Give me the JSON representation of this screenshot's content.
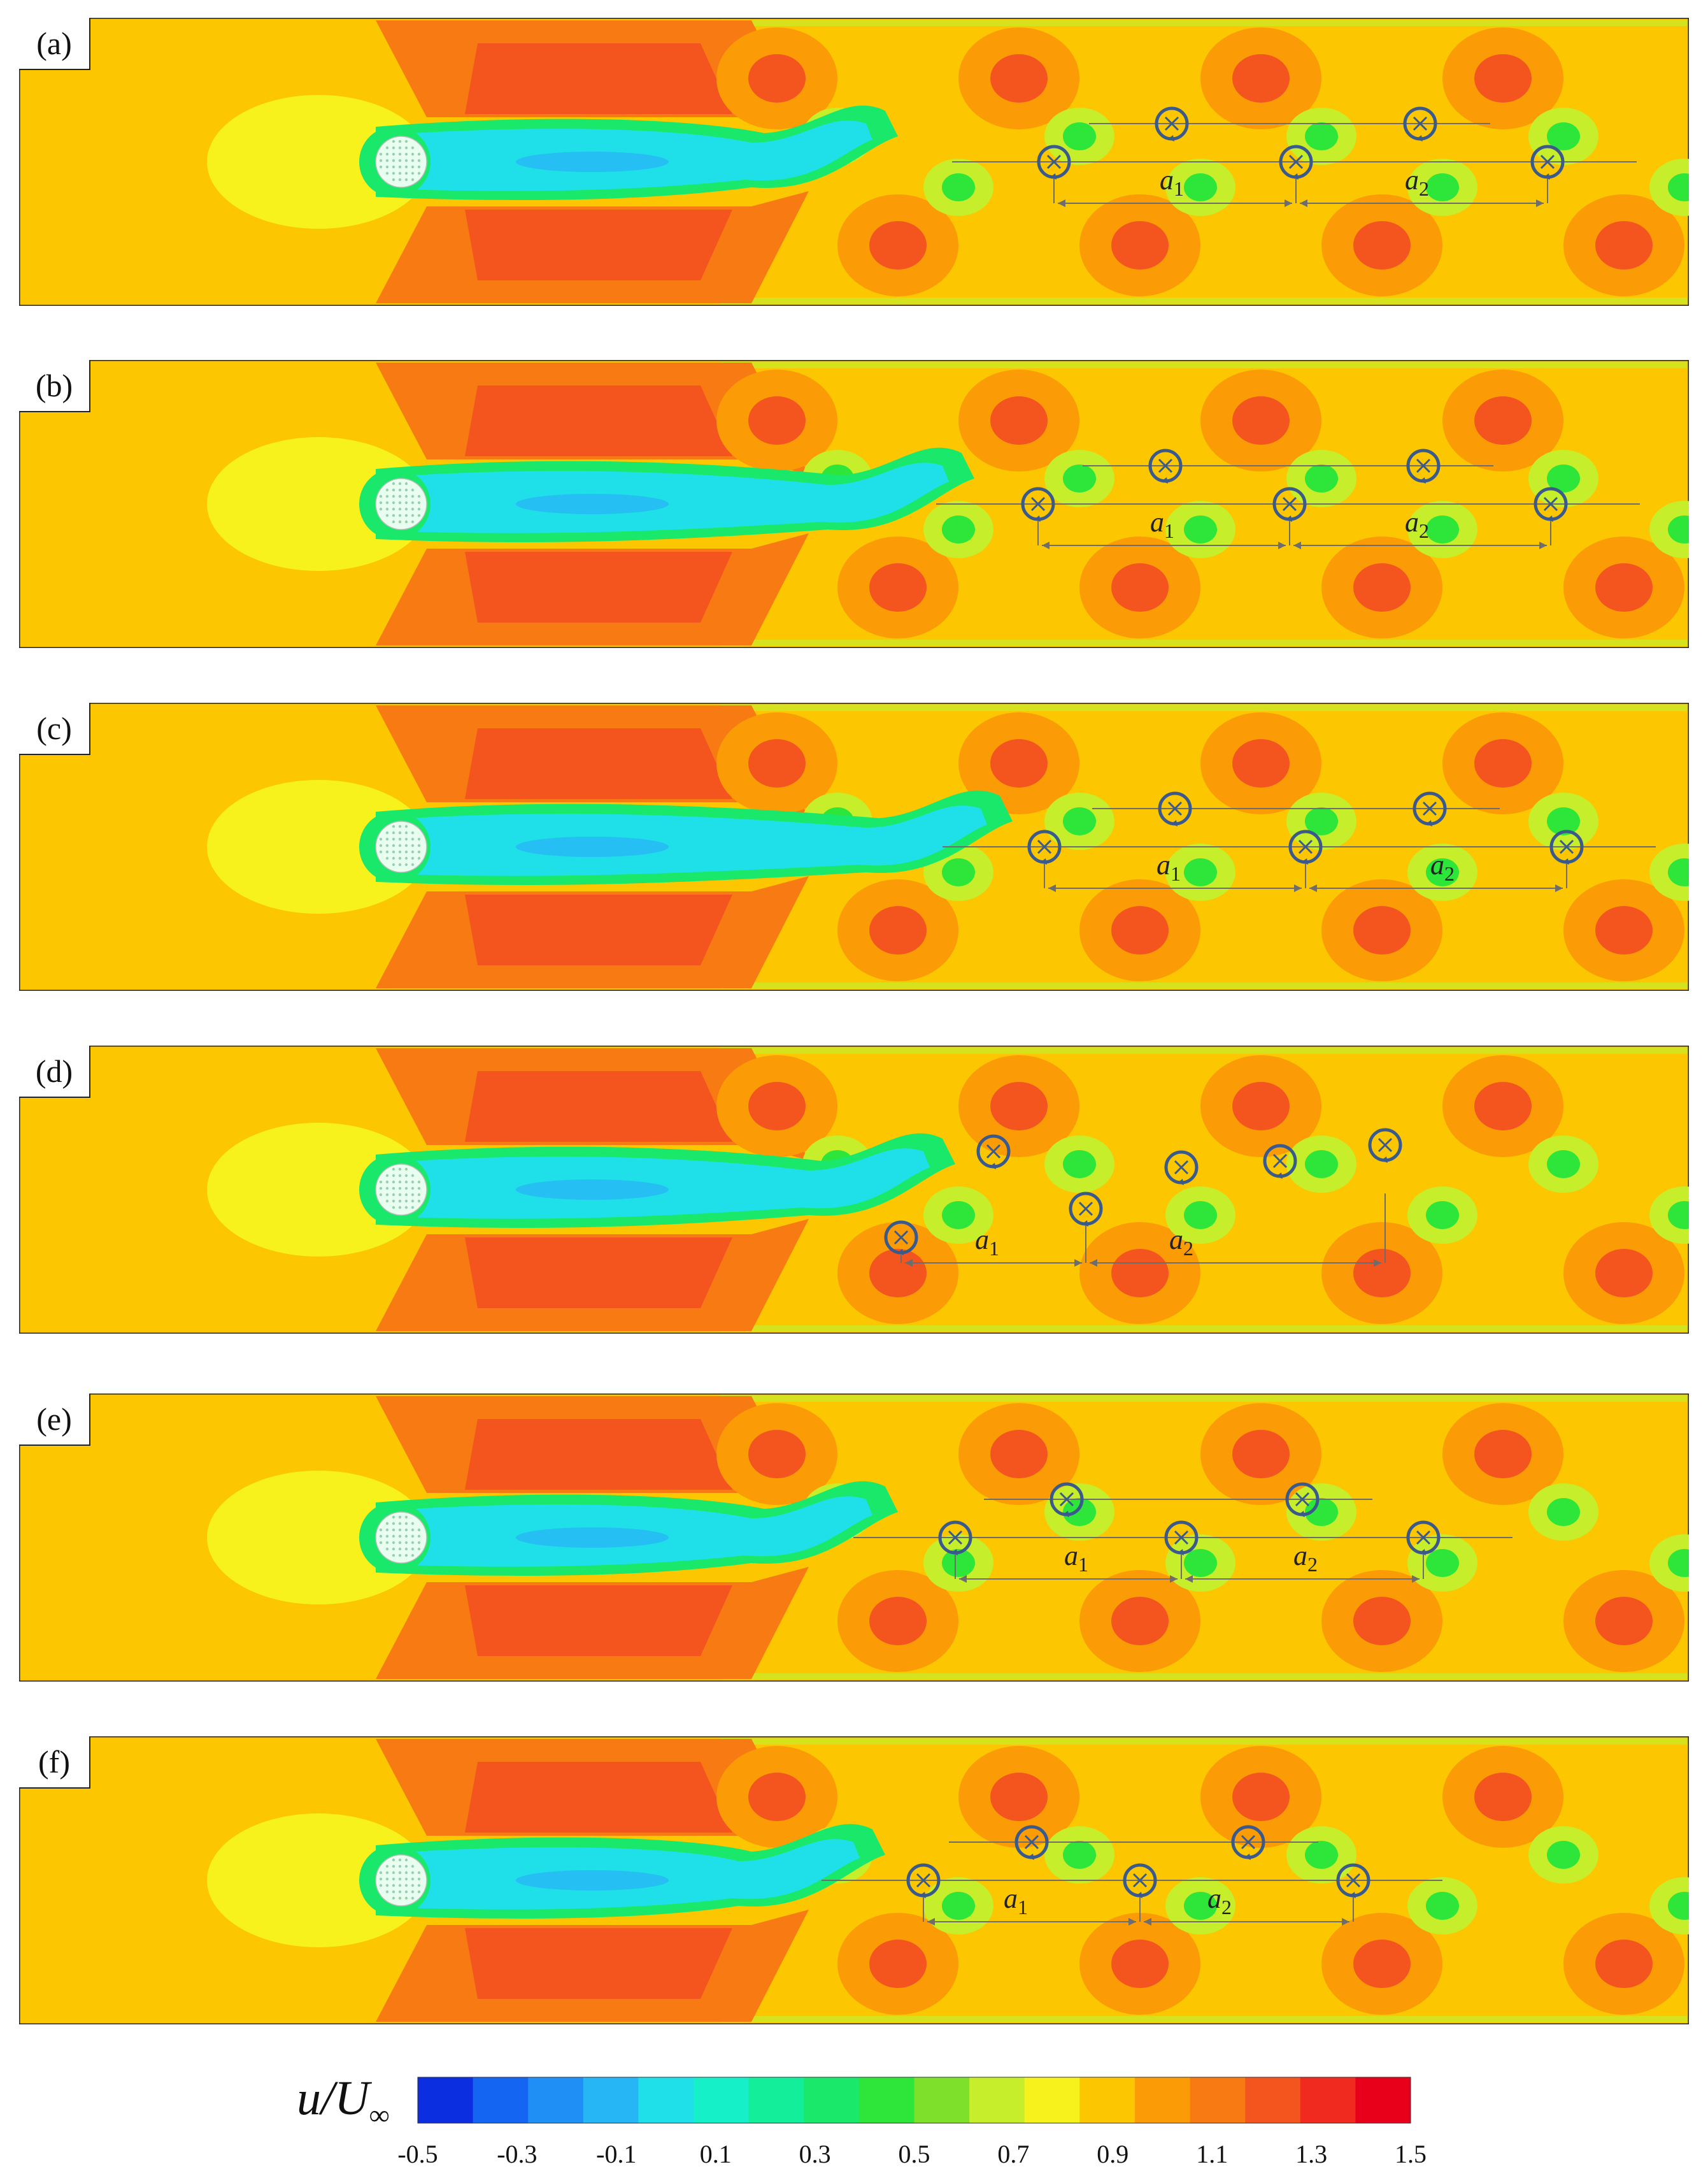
{
  "panels": [
    {
      "label": "(a)",
      "a1": "a",
      "a2": "a",
      "sub1": "1",
      "sub2": "2"
    },
    {
      "label": "(b)",
      "a1": "a",
      "a2": "a",
      "sub1": "1",
      "sub2": "2"
    },
    {
      "label": "(c)",
      "a1": "a",
      "a2": "a",
      "sub1": "1",
      "sub2": "2"
    },
    {
      "label": "(d)",
      "a1": "a",
      "a2": "a",
      "sub1": "1",
      "sub2": "2"
    },
    {
      "label": "(e)",
      "a1": "a",
      "a2": "a",
      "sub1": "1",
      "sub2": "2"
    },
    {
      "label": "(f)",
      "a1": "a",
      "a2": "a",
      "sub1": "1",
      "sub2": "2"
    }
  ],
  "colorbar": {
    "title_main": "u/U",
    "title_sub": "∞",
    "ticks": [
      "-0.5",
      "-0.3",
      "-0.1",
      "0.1",
      "0.3",
      "0.5",
      "0.7",
      "0.9",
      "1.1",
      "1.3",
      "1.5"
    ],
    "colors": [
      "#0a2ee0",
      "#1466f2",
      "#1f8ff6",
      "#27b6f5",
      "#1fe0e8",
      "#16f0c8",
      "#12ee9a",
      "#1ae86a",
      "#2ee53a",
      "#7ee02b",
      "#c6ee2a",
      "#f7f21c",
      "#fcc600",
      "#fb9c07",
      "#f77a12",
      "#f4551e",
      "#f02a1e",
      "#e8001a"
    ]
  },
  "colors": {
    "background_flow": "#fcc600",
    "freestream_bubble": "#f7f21c",
    "accelerated": "#f4551e",
    "wake_core": "#1fe0e8",
    "annotation": "#3a5a8c"
  }
}
